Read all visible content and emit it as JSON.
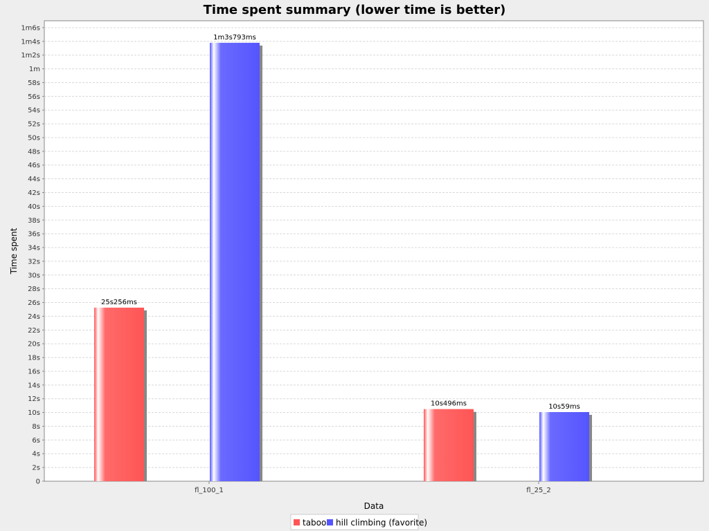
{
  "chart_data": {
    "type": "bar",
    "title": "Time spent summary (lower time is better)",
    "xlabel": "Data",
    "ylabel": "Time spent",
    "categories": [
      "fl_100_1",
      "fl_25_2"
    ],
    "ylim": [
      0,
      67
    ],
    "ytick_labels": [
      "0",
      "2s",
      "4s",
      "6s",
      "8s",
      "10s",
      "12s",
      "14s",
      "16s",
      "18s",
      "20s",
      "22s",
      "24s",
      "26s",
      "28s",
      "30s",
      "32s",
      "34s",
      "36s",
      "38s",
      "40s",
      "42s",
      "44s",
      "46s",
      "48s",
      "50s",
      "52s",
      "54s",
      "56s",
      "58s",
      "1m",
      "1m2s",
      "1m4s",
      "1m6s"
    ],
    "grid": true,
    "legend_position": "bottom",
    "series": [
      {
        "name": "taboo",
        "color": "#ff5555",
        "values": [
          25.256,
          10.496
        ],
        "labels": [
          "25s256ms",
          "10s496ms"
        ]
      },
      {
        "name": "hill climbing (favorite)",
        "color": "#5555ff",
        "values": [
          63.793,
          10.059
        ],
        "labels": [
          "1m3s793ms",
          "10s59ms"
        ]
      }
    ]
  }
}
